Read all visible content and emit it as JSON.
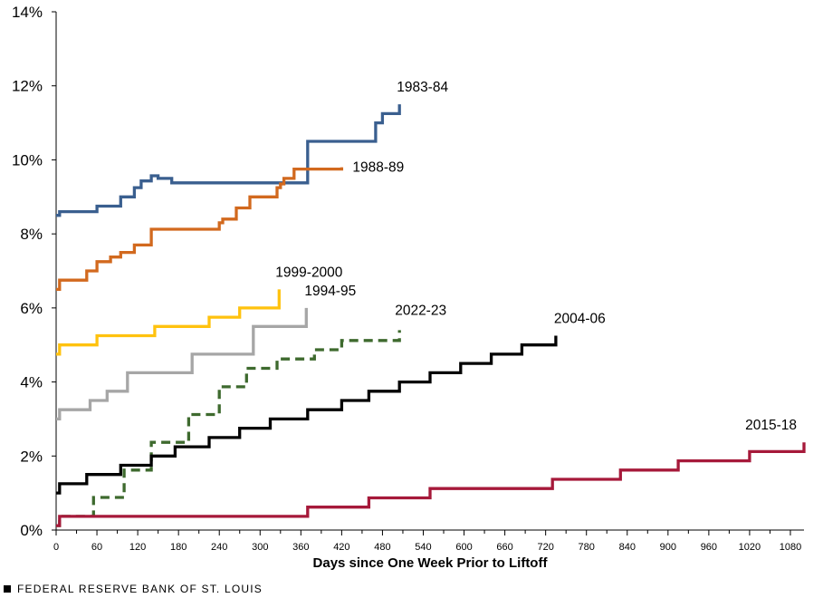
{
  "chart_data": {
    "type": "line",
    "title": "",
    "xlabel": "Days since One Week Prior to Liftoff",
    "ylabel": "",
    "xlim": [
      0,
      1100
    ],
    "ylim": [
      0,
      14
    ],
    "x_ticks": [
      0,
      60,
      120,
      180,
      240,
      300,
      360,
      420,
      480,
      540,
      600,
      660,
      720,
      780,
      840,
      900,
      960,
      1020,
      1080
    ],
    "y_ticks": [
      0,
      2,
      4,
      6,
      8,
      10,
      12,
      14
    ],
    "y_tick_format": "percent",
    "grid": false,
    "series": [
      {
        "name": "1983-84",
        "color": "#3a5f8f",
        "dash": false,
        "x": [
          0,
          5,
          60,
          95,
          115,
          125,
          140,
          150,
          170,
          370,
          470,
          480,
          505
        ],
        "y": [
          8.5,
          8.6,
          8.75,
          9.0,
          9.25,
          9.43,
          9.57,
          9.5,
          9.38,
          10.5,
          11.0,
          11.25,
          11.5
        ]
      },
      {
        "name": "1988-89",
        "color": "#d2691e",
        "dash": false,
        "x": [
          0,
          5,
          45,
          60,
          80,
          95,
          115,
          140,
          240,
          245,
          265,
          285,
          325,
          330,
          335,
          350,
          420
        ],
        "y": [
          6.5,
          6.75,
          7.0,
          7.25,
          7.375,
          7.5,
          7.7,
          8.125,
          8.3,
          8.4,
          8.7,
          9.0,
          9.25,
          9.35,
          9.5,
          9.75,
          9.8
        ]
      },
      {
        "name": "1999-2000",
        "color": "#ffc20e",
        "dash": false,
        "x": [
          0,
          5,
          60,
          145,
          225,
          270,
          328
        ],
        "y": [
          4.75,
          5.0,
          5.25,
          5.5,
          5.75,
          6.0,
          6.5
        ]
      },
      {
        "name": "1994-95",
        "color": "#a6a6a6",
        "dash": false,
        "x": [
          0,
          5,
          50,
          75,
          105,
          200,
          290,
          368
        ],
        "y": [
          3.0,
          3.25,
          3.5,
          3.75,
          4.25,
          4.75,
          5.5,
          6.0
        ]
      },
      {
        "name": "2022-23",
        "color": "#3e6a2e",
        "dash": true,
        "x": [
          0,
          5,
          55,
          100,
          140,
          195,
          240,
          280,
          325,
          380,
          420,
          505
        ],
        "y": [
          0.12,
          0.37,
          0.88,
          1.62,
          2.37,
          3.12,
          3.87,
          4.37,
          4.62,
          4.87,
          5.12,
          5.4
        ]
      },
      {
        "name": "2004-06",
        "color": "#000000",
        "dash": false,
        "x": [
          0,
          5,
          45,
          95,
          140,
          175,
          225,
          270,
          315,
          370,
          420,
          460,
          505,
          550,
          595,
          640,
          685,
          735
        ],
        "y": [
          1.0,
          1.25,
          1.5,
          1.75,
          2.0,
          2.25,
          2.5,
          2.75,
          3.0,
          3.25,
          3.5,
          3.75,
          4.0,
          4.25,
          4.5,
          4.75,
          5.0,
          5.25
        ]
      },
      {
        "name": "2015-18",
        "color": "#a6193a",
        "dash": false,
        "x": [
          0,
          5,
          370,
          460,
          550,
          730,
          830,
          915,
          1020,
          1100
        ],
        "y": [
          0.12,
          0.37,
          0.62,
          0.87,
          1.12,
          1.37,
          1.62,
          1.87,
          2.12,
          2.37
        ]
      }
    ]
  },
  "footer": {
    "text": "FEDERAL RESERVE BANK OF ST. LOUIS"
  }
}
